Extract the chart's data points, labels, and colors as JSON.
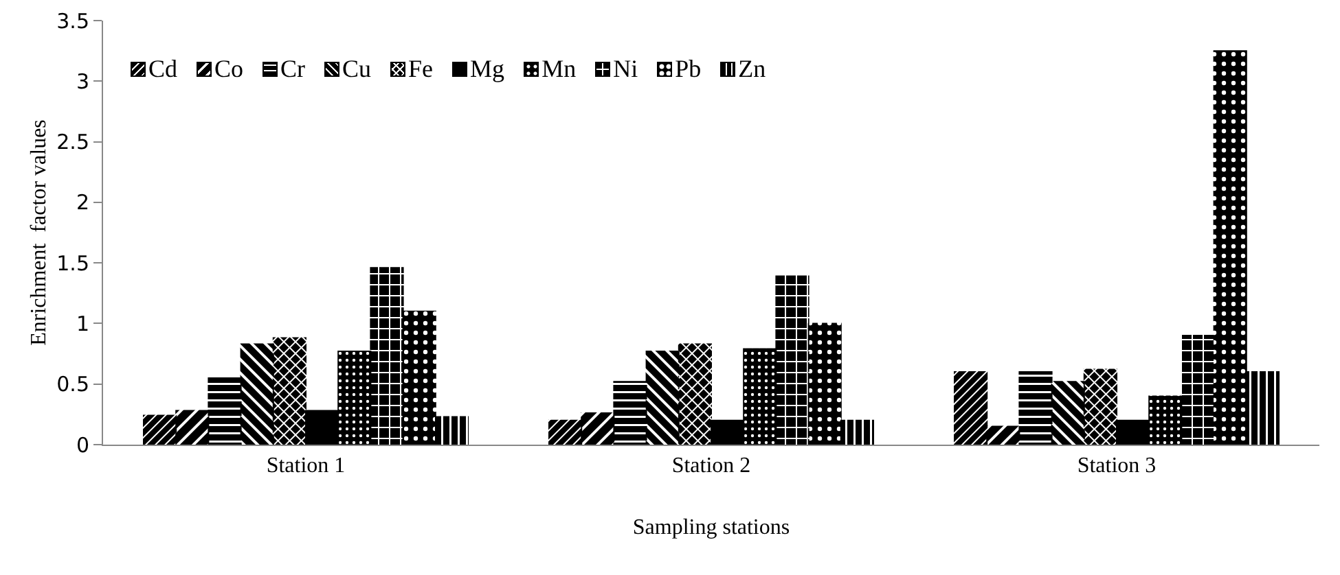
{
  "chart_data": {
    "type": "bar",
    "xlabel": "Sampling stations",
    "ylabel": "Enrichment  factor values",
    "categories": [
      "Station 1",
      "Station 2",
      "Station 3"
    ],
    "series": [
      {
        "name": "Cd",
        "color": "#000000",
        "values": [
          0.24,
          0.2,
          0.6
        ]
      },
      {
        "name": "Co",
        "color": "#000000",
        "values": [
          0.28,
          0.26,
          0.15
        ]
      },
      {
        "name": "Cr",
        "color": "#000000",
        "values": [
          0.55,
          0.52,
          0.6
        ]
      },
      {
        "name": "Cu",
        "color": "#000000",
        "values": [
          0.83,
          0.77,
          0.52
        ]
      },
      {
        "name": "Fe",
        "color": "#000000",
        "values": [
          0.88,
          0.83,
          0.62
        ]
      },
      {
        "name": "Mg",
        "color": "#000000",
        "values": [
          0.28,
          0.2,
          0.2
        ]
      },
      {
        "name": "Mn",
        "color": "#000000",
        "values": [
          0.77,
          0.79,
          0.4
        ]
      },
      {
        "name": "Ni",
        "color": "#000000",
        "values": [
          1.46,
          1.39,
          0.9
        ]
      },
      {
        "name": "Pb",
        "color": "#000000",
        "values": [
          1.1,
          1.0,
          3.25
        ]
      },
      {
        "name": "Zn",
        "color": "#000000",
        "values": [
          0.23,
          0.2,
          0.6
        ]
      }
    ],
    "ylim": [
      0,
      3.5
    ],
    "yticks": [
      0,
      0.5,
      1,
      1.5,
      2,
      2.5,
      3,
      3.5
    ],
    "grid": false,
    "legend": "top"
  }
}
